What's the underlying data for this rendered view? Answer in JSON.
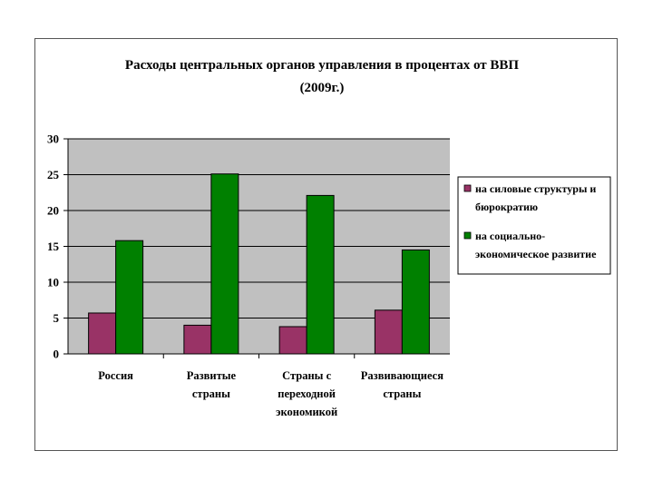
{
  "chart_data": {
    "type": "bar",
    "title_lines": [
      "Расходы центральных органов управления в процентах от ВВП",
      "(2009г.)"
    ],
    "categories": [
      [
        "Россия"
      ],
      [
        "Развитые",
        "страны"
      ],
      [
        "Страны с",
        "переходной",
        "экономикой"
      ],
      [
        "Развивающиеся",
        "страны"
      ]
    ],
    "series": [
      {
        "legend_lines": [
          "на силовые структуры и",
          "бюрократию"
        ],
        "color": "#993366",
        "values": [
          5.7,
          4.0,
          3.8,
          6.1
        ]
      },
      {
        "legend_lines": [
          "на социально-",
          "экономическое развитие"
        ],
        "color": "#008000",
        "values": [
          15.8,
          25.1,
          22.1,
          14.5
        ]
      }
    ],
    "ylim": [
      0,
      30
    ],
    "yticks": [
      "0",
      "5",
      "10",
      "15",
      "20",
      "25",
      "30"
    ],
    "plot_background": "#c0c0c0",
    "grid": true,
    "legend_position": "right"
  }
}
